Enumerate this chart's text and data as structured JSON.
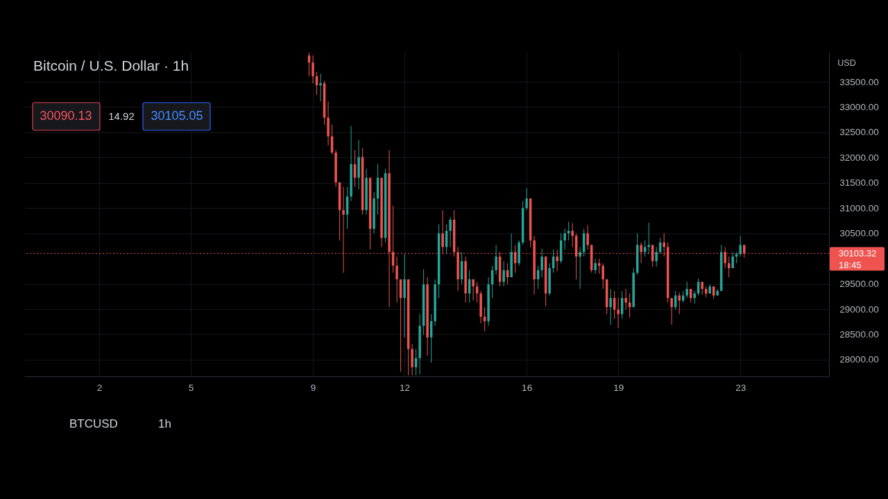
{
  "chart_data": {
    "type": "candlestick",
    "title": "Bitcoin / U.S. Dollar · 1h",
    "ylabel": "USD",
    "x": [
      8.875,
      9,
      9.125,
      9.25,
      9.375,
      9.5,
      9.625,
      9.75,
      9.875,
      10,
      10.125,
      10.25,
      10.375,
      10.5,
      10.625,
      10.75,
      10.875,
      11,
      11.125,
      11.25,
      11.375,
      11.5,
      11.625,
      11.75,
      11.875,
      12,
      12.125,
      12.25,
      12.375,
      12.5,
      12.625,
      12.75,
      12.875,
      13,
      13.125,
      13.25,
      13.375,
      13.5,
      13.625,
      13.75,
      13.875,
      14,
      14.125,
      14.25,
      14.375,
      14.5,
      14.625,
      14.75,
      14.875,
      15,
      15.125,
      15.25,
      15.375,
      15.5,
      15.625,
      15.75,
      15.875,
      16,
      16.125,
      16.25,
      16.375,
      16.5,
      16.625,
      16.75,
      16.875,
      17,
      17.125,
      17.25,
      17.375,
      17.5,
      17.625,
      17.75,
      17.875,
      18,
      18.125,
      18.25,
      18.375,
      18.5,
      18.625,
      18.75,
      18.875,
      19,
      19.125,
      19.25,
      19.375,
      19.5,
      19.625,
      19.75,
      19.875,
      20,
      20.125,
      20.25,
      20.375,
      20.5,
      20.625,
      20.75,
      20.875,
      21,
      21.125,
      21.25,
      21.375,
      21.5,
      21.625,
      21.75,
      21.875,
      22,
      22.125,
      22.25,
      22.375,
      22.5,
      22.625,
      22.75,
      22.875,
      23,
      23.125
    ],
    "ohlc": [
      [
        34020,
        34080,
        33610,
        33880
      ],
      [
        33880,
        34020,
        33470,
        33610
      ],
      [
        33610,
        33700,
        33240,
        33430
      ],
      [
        33430,
        33660,
        33110,
        33470
      ],
      [
        33470,
        33520,
        32650,
        32790
      ],
      [
        32790,
        33110,
        32240,
        32420
      ],
      [
        32420,
        32650,
        32060,
        32100
      ],
      [
        32100,
        32150,
        31420,
        31510
      ],
      [
        31510,
        31510,
        30360,
        30960
      ],
      [
        30960,
        31420,
        29720,
        30870
      ],
      [
        30870,
        31420,
        30590,
        31230
      ],
      [
        31230,
        32630,
        31140,
        31870
      ],
      [
        31870,
        32150,
        31420,
        31600
      ],
      [
        31600,
        32350,
        31370,
        32010
      ],
      [
        32010,
        32190,
        30870,
        30960
      ],
      [
        30960,
        31780,
        30870,
        31600
      ],
      [
        31600,
        31600,
        30180,
        30590
      ],
      [
        30590,
        31320,
        30500,
        31190
      ],
      [
        31190,
        31870,
        30870,
        31600
      ],
      [
        31600,
        31600,
        30230,
        30410
      ],
      [
        30410,
        31780,
        30320,
        31690
      ],
      [
        31690,
        32150,
        29040,
        30130
      ],
      [
        30130,
        31050,
        29720,
        29860
      ],
      [
        29860,
        30040,
        29130,
        29590
      ],
      [
        29590,
        29590,
        27760,
        29220
      ],
      [
        29220,
        30090,
        28440,
        29590
      ],
      [
        29590,
        29590,
        27690,
        28210
      ],
      [
        28210,
        28310,
        27690,
        27850
      ],
      [
        27850,
        28210,
        27690,
        28030
      ],
      [
        28030,
        28900,
        27710,
        28670
      ],
      [
        28670,
        29790,
        28490,
        29490
      ],
      [
        29490,
        29630,
        28080,
        28440
      ],
      [
        28440,
        28900,
        27940,
        28760
      ],
      [
        28760,
        29590,
        28670,
        29490
      ],
      [
        29490,
        30680,
        29220,
        30500
      ],
      [
        30500,
        30960,
        30090,
        30230
      ],
      [
        30230,
        30680,
        30090,
        30550
      ],
      [
        30550,
        30820,
        30230,
        30770
      ],
      [
        30770,
        30960,
        30040,
        30130
      ],
      [
        30130,
        30230,
        29360,
        29590
      ],
      [
        29590,
        30130,
        29490,
        29950
      ],
      [
        29950,
        30040,
        29130,
        29310
      ],
      [
        29310,
        29770,
        29130,
        29590
      ],
      [
        29590,
        29590,
        29170,
        29450
      ],
      [
        29450,
        29540,
        29130,
        29310
      ],
      [
        29310,
        29360,
        28720,
        28850
      ],
      [
        28850,
        29040,
        28560,
        28760
      ],
      [
        28760,
        29630,
        28670,
        29490
      ],
      [
        29490,
        29860,
        29220,
        29770
      ],
      [
        29770,
        30270,
        29680,
        30040
      ],
      [
        30040,
        30130,
        29450,
        29540
      ],
      [
        29540,
        29950,
        29450,
        29770
      ],
      [
        29770,
        29910,
        29490,
        29630
      ],
      [
        29630,
        30500,
        29630,
        30130
      ],
      [
        30130,
        30270,
        29720,
        29910
      ],
      [
        29910,
        30360,
        29860,
        30320
      ],
      [
        30320,
        31140,
        30270,
        31000
      ],
      [
        31000,
        31390,
        30960,
        31190
      ],
      [
        31190,
        31190,
        30230,
        30360
      ],
      [
        30360,
        30450,
        29290,
        29590
      ],
      [
        29590,
        29860,
        29400,
        29770
      ],
      [
        29770,
        30200,
        29630,
        30040
      ],
      [
        30040,
        30040,
        29060,
        29310
      ],
      [
        29310,
        29910,
        29270,
        29810
      ],
      [
        29810,
        30180,
        29720,
        30040
      ],
      [
        30040,
        30180,
        29750,
        29950
      ],
      [
        29950,
        30500,
        29910,
        30360
      ],
      [
        30360,
        30590,
        30180,
        30500
      ],
      [
        30500,
        30730,
        30360,
        30550
      ],
      [
        30550,
        30700,
        30230,
        30450
      ],
      [
        30450,
        30500,
        29590,
        30040
      ],
      [
        30040,
        30230,
        29400,
        30130
      ],
      [
        30130,
        30590,
        30040,
        30500
      ],
      [
        30500,
        30660,
        30180,
        30270
      ],
      [
        30270,
        30270,
        29720,
        29770
      ],
      [
        29770,
        30000,
        29700,
        29910
      ],
      [
        29910,
        30000,
        29700,
        29860
      ],
      [
        29860,
        29910,
        29400,
        29590
      ],
      [
        29590,
        29590,
        28900,
        29040
      ],
      [
        29040,
        29400,
        28690,
        29220
      ],
      [
        29220,
        29360,
        28810,
        28990
      ],
      [
        28990,
        29220,
        28630,
        28900
      ],
      [
        28900,
        29360,
        28810,
        29220
      ],
      [
        29220,
        29400,
        28990,
        29130
      ],
      [
        29130,
        29310,
        28830,
        29040
      ],
      [
        29040,
        29810,
        29040,
        29720
      ],
      [
        29720,
        30500,
        29680,
        30270
      ],
      [
        30270,
        30320,
        29910,
        30130
      ],
      [
        30130,
        30360,
        30040,
        30230
      ],
      [
        30230,
        30710,
        30090,
        30270
      ],
      [
        30270,
        30270,
        29840,
        29950
      ],
      [
        29950,
        30230,
        29840,
        30130
      ],
      [
        30130,
        30410,
        30090,
        30320
      ],
      [
        30320,
        30500,
        30040,
        30230
      ],
      [
        30230,
        30320,
        29130,
        29220
      ],
      [
        29220,
        29220,
        28690,
        29040
      ],
      [
        29040,
        29360,
        28990,
        29270
      ],
      [
        29270,
        29330,
        28900,
        29170
      ],
      [
        29170,
        29360,
        29130,
        29270
      ],
      [
        29270,
        29540,
        29220,
        29400
      ],
      [
        29400,
        29400,
        29130,
        29220
      ],
      [
        29220,
        29360,
        29110,
        29310
      ],
      [
        29310,
        29610,
        29270,
        29540
      ],
      [
        29540,
        29540,
        29290,
        29400
      ],
      [
        29400,
        29450,
        29240,
        29310
      ],
      [
        29310,
        29490,
        29310,
        29450
      ],
      [
        29450,
        29450,
        29200,
        29270
      ],
      [
        29270,
        29400,
        29270,
        29360
      ],
      [
        29360,
        30270,
        29360,
        30130
      ],
      [
        30130,
        30230,
        29810,
        29910
      ],
      [
        29910,
        30040,
        29630,
        29810
      ],
      [
        29810,
        30130,
        29810,
        30040
      ],
      [
        30040,
        30130,
        29910,
        30090
      ],
      [
        30090,
        30450,
        30040,
        30270
      ],
      [
        30270,
        30270,
        30020,
        30103.32
      ]
    ],
    "colors": [
      "#ef5350",
      "#ef5350",
      "#ef5350",
      "#26a69a",
      "#ef5350",
      "#ef5350",
      "#ef5350",
      "#ef5350",
      "#ef5350",
      "#ef5350",
      "#26a69a",
      "#26a69a",
      "#ef5350",
      "#26a69a",
      "#ef5350",
      "#26a69a",
      "#ef5350",
      "#26a69a",
      "#26a69a",
      "#ef5350",
      "#26a69a",
      "#ef5350",
      "#ef5350",
      "#ef5350",
      "#ef5350",
      "#26a69a",
      "#ef5350",
      "#ef5350",
      "#26a69a",
      "#26a69a",
      "#26a69a",
      "#ef5350",
      "#26a69a",
      "#26a69a",
      "#26a69a",
      "#ef5350",
      "#26a69a",
      "#26a69a",
      "#ef5350",
      "#ef5350",
      "#26a69a",
      "#ef5350",
      "#26a69a",
      "#ef5350",
      "#ef5350",
      "#ef5350",
      "#ef5350",
      "#26a69a",
      "#26a69a",
      "#26a69a",
      "#ef5350",
      "#26a69a",
      "#ef5350",
      "#26a69a",
      "#ef5350",
      "#26a69a",
      "#26a69a",
      "#26a69a",
      "#ef5350",
      "#ef5350",
      "#26a69a",
      "#26a69a",
      "#ef5350",
      "#26a69a",
      "#26a69a",
      "#ef5350",
      "#26a69a",
      "#26a69a",
      "#26a69a",
      "#ef5350",
      "#ef5350",
      "#26a69a",
      "#26a69a",
      "#ef5350",
      "#ef5350",
      "#26a69a",
      "#ef5350",
      "#ef5350",
      "#ef5350",
      "#26a69a",
      "#ef5350",
      "#ef5350",
      "#26a69a",
      "#ef5350",
      "#ef5350",
      "#26a69a",
      "#26a69a",
      "#ef5350",
      "#26a69a",
      "#26a69a",
      "#ef5350",
      "#26a69a",
      "#26a69a",
      "#ef5350",
      "#ef5350",
      "#ef5350",
      "#26a69a",
      "#ef5350",
      "#26a69a",
      "#26a69a",
      "#ef5350",
      "#26a69a",
      "#26a69a",
      "#ef5350",
      "#ef5350",
      "#26a69a",
      "#ef5350",
      "#26a69a",
      "#26a69a",
      "#ef5350",
      "#ef5350",
      "#26a69a",
      "#26a69a",
      "#26a69a",
      "#ef5350"
    ],
    "xlim": [
      -0.34,
      25.79
    ],
    "xticks": [
      2,
      5,
      9,
      12,
      16,
      19,
      23
    ],
    "ylim": [
      27670,
      34090
    ],
    "yticks": [
      {
        "value": 33500,
        "label": "33500.00"
      },
      {
        "value": 33000,
        "label": "33000.00"
      },
      {
        "value": 32500,
        "label": "32500.00"
      },
      {
        "value": 32000,
        "label": "32000.00"
      },
      {
        "value": 31500,
        "label": "31500.00"
      },
      {
        "value": 31000,
        "label": "31000.00"
      },
      {
        "value": 30500,
        "label": "30500.00"
      },
      {
        "value": 29500,
        "label": "29500.00"
      },
      {
        "value": 29000,
        "label": "29000.00"
      },
      {
        "value": 28500,
        "label": "28500.00"
      },
      {
        "value": 28000,
        "label": "28000.00"
      }
    ],
    "grid": true,
    "ref_lines": [
      {
        "axis": "y",
        "value": 30103.32,
        "label": "30103.32",
        "color": "#ef5350",
        "line_style": "dotted"
      }
    ],
    "annotations": [
      "30090.13",
      "14.92",
      "30105.05",
      "18:45",
      "BTCUSD",
      "1h"
    ]
  }
}
